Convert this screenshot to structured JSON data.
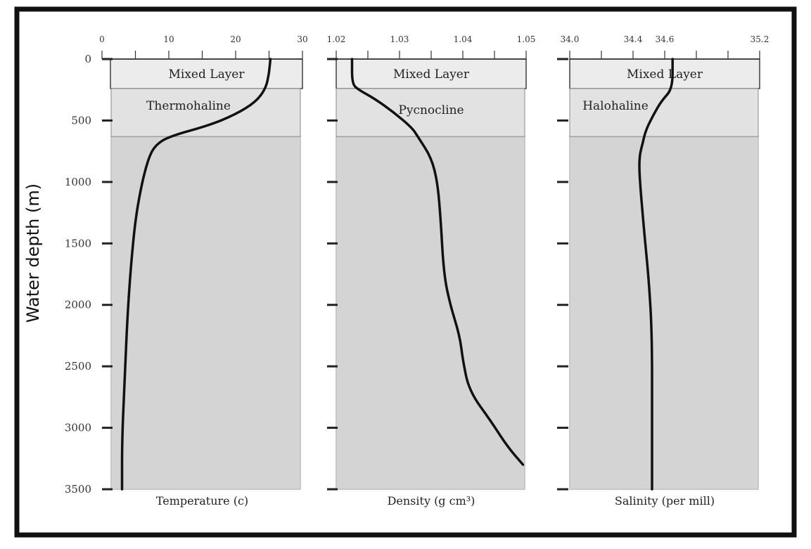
{
  "chart_data": {
    "type": "line",
    "ylabel": "Water depth (m)",
    "depth_ticks": [
      "0",
      "500",
      "1000",
      "1500",
      "2000",
      "2500",
      "3000",
      "3500"
    ],
    "depth_values": [
      0,
      500,
      1000,
      1500,
      2000,
      2500,
      3000,
      3500
    ],
    "ylim": [
      0,
      3500
    ],
    "y_inverted": true,
    "colors": {
      "curve": "#111111",
      "band_light": "#ececec",
      "band_mid": "#e2e2e2",
      "deep": "#d4d4d4",
      "frame": "#111111"
    },
    "panels": [
      {
        "xlabel": "Temperature (c)",
        "xlim": [
          0,
          30
        ],
        "x_tick_labels": [
          "0",
          "10",
          "20",
          "30"
        ],
        "x_tick_values": [
          0,
          10,
          20,
          30
        ],
        "minor_tick_values": [
          0,
          5,
          10,
          15,
          20,
          25,
          30
        ],
        "bands": [
          {
            "label": "Mixed Layer",
            "depth_range": [
              0,
              240
            ]
          },
          {
            "label": "Thermohaline",
            "depth_range": [
              240,
              630
            ]
          }
        ],
        "series": {
          "x": [
            25.2,
            25.0,
            24.5,
            23.0,
            20.0,
            16.0,
            10.0,
            8.0,
            7.0,
            6.0,
            5.0,
            4.3,
            3.8,
            3.4,
            3.0,
            3.0
          ],
          "depth": [
            0,
            120,
            240,
            350,
            450,
            540,
            630,
            700,
            800,
            1000,
            1300,
            1700,
            2100,
            2600,
            3100,
            3500
          ]
        }
      },
      {
        "xlabel": "Density (g cm³)",
        "xlim": [
          1.02,
          1.05
        ],
        "x_tick_labels": [
          "1.02",
          "1.03",
          "1.04",
          "1.05"
        ],
        "x_tick_values": [
          1.02,
          1.03,
          1.04,
          1.05
        ],
        "minor_tick_values": [
          1.02,
          1.025,
          1.03,
          1.035,
          1.04,
          1.045,
          1.05
        ],
        "bands": [
          {
            "label": "Mixed Layer",
            "depth_range": [
              0,
              240
            ]
          },
          {
            "label": "Pycnocline",
            "depth_range": [
              240,
              630
            ]
          }
        ],
        "series": {
          "x": [
            1.0225,
            1.0225,
            1.0235,
            1.026,
            1.029,
            1.032,
            1.033,
            1.035,
            1.036,
            1.0365,
            1.037,
            1.038,
            1.0395,
            1.04,
            1.041,
            1.0445,
            1.047,
            1.0495
          ],
          "depth": [
            0,
            200,
            250,
            320,
            430,
            560,
            640,
            800,
            1000,
            1300,
            1750,
            2000,
            2250,
            2450,
            2700,
            2950,
            3150,
            3300
          ]
        }
      },
      {
        "xlabel": "Salinity (per mill)",
        "xlim": [
          34.0,
          35.2
        ],
        "x_tick_labels": [
          "34.0",
          "34.4",
          "34.6",
          "35.2"
        ],
        "x_tick_values": [
          34.0,
          34.4,
          34.6,
          35.2
        ],
        "minor_tick_values": [
          34.0,
          34.2,
          34.4,
          34.6,
          34.8,
          35.0,
          35.2
        ],
        "bands": [
          {
            "label": "Mixed Layer",
            "depth_range": [
              0,
              240
            ]
          },
          {
            "label": "Halohaline",
            "depth_range": [
              240,
              630
            ]
          }
        ],
        "series": {
          "x": [
            34.65,
            34.65,
            34.58,
            34.53,
            34.48,
            34.46,
            34.44,
            34.44,
            34.47,
            34.5,
            34.52,
            34.52,
            34.52
          ],
          "depth": [
            0,
            240,
            340,
            450,
            580,
            690,
            790,
            950,
            1400,
            1800,
            2250,
            2900,
            3500
          ]
        }
      }
    ]
  }
}
